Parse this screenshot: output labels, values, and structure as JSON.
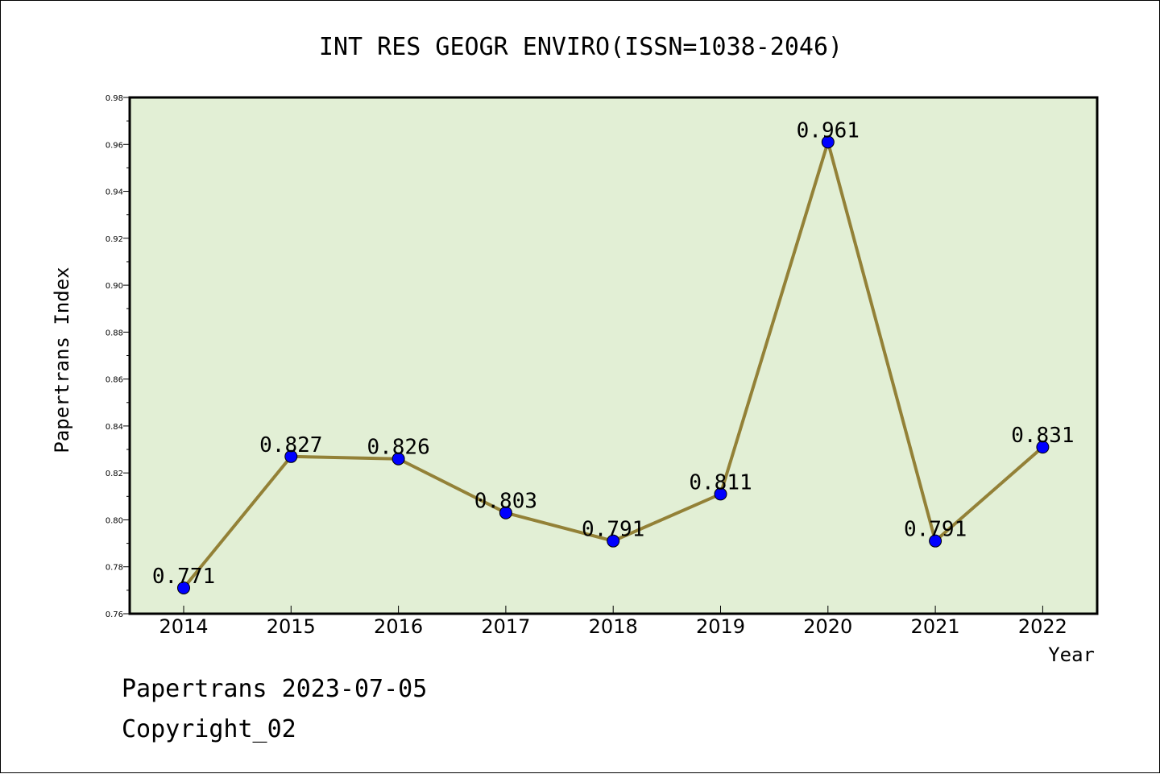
{
  "chart_data": {
    "type": "line",
    "title": "INT RES GEOGR ENVIRO(ISSN=1038-2046)",
    "xlabel": "Year",
    "ylabel": "Papertrans Index",
    "categories": [
      "2014",
      "2015",
      "2016",
      "2017",
      "2018",
      "2019",
      "2020",
      "2021",
      "2022"
    ],
    "values": [
      0.771,
      0.827,
      0.826,
      0.803,
      0.791,
      0.811,
      0.961,
      0.791,
      0.831
    ],
    "data_labels": [
      "0.771",
      "0.827",
      "0.826",
      "0.803",
      "0.791",
      "0.811",
      "0.961",
      "0.791",
      "0.831"
    ],
    "ylim": [
      0.76,
      0.98
    ],
    "yticks": [
      "0.76",
      "0.78",
      "0.80",
      "0.82",
      "0.84",
      "0.86",
      "0.88",
      "0.90",
      "0.92",
      "0.94",
      "0.96",
      "0.98"
    ],
    "grid": false,
    "colors": {
      "plot_background": "#e2efd5",
      "line": "#938137",
      "marker": "#0000ff"
    }
  },
  "footer": {
    "line1": "Papertrans 2023-07-05",
    "line2": "Copyright_02"
  }
}
